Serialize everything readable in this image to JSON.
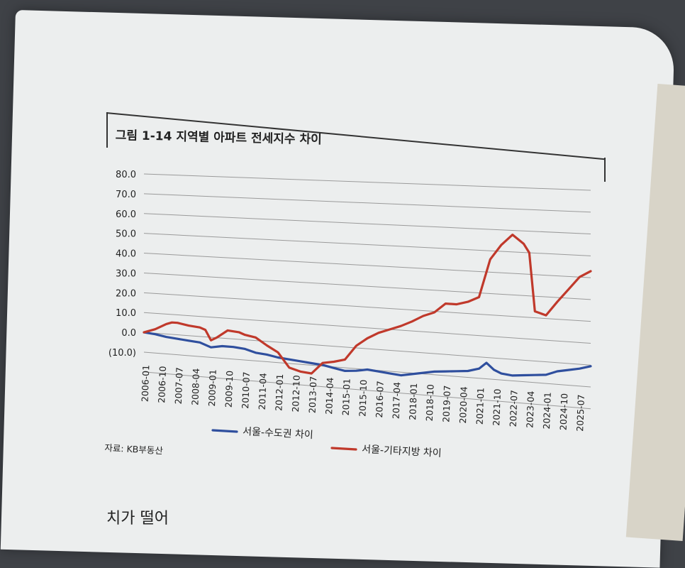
{
  "figure_title": "그림 1-14 지역별 아파트 전세지수 차이",
  "source": "자료: KB부동산",
  "bottom_text": "치가 떨어",
  "chart_data": {
    "type": "line",
    "title": "그림 1-14 지역별 아파트 전세지수 차이",
    "xlabel": "",
    "ylabel": "",
    "ylim": [
      -10,
      80
    ],
    "yticks": [
      80,
      70,
      60,
      50,
      40,
      30,
      20,
      10,
      0,
      -10
    ],
    "ytick_labels": [
      "80.0",
      "70.0",
      "60.0",
      "50.0",
      "40.0",
      "30.0",
      "20.0",
      "10.0",
      "0.0",
      "(10.0)"
    ],
    "xlim": [
      "2006-01",
      "2026-01"
    ],
    "xtick_labels": [
      "2006-01",
      "2006-10",
      "2007-07",
      "2008-04",
      "2009-01",
      "2009-10",
      "2010-07",
      "2011-04",
      "2012-01",
      "2012-10",
      "2013-07",
      "2014-04",
      "2015-01",
      "2015-10",
      "2016-07",
      "2017-04",
      "2018-01",
      "2018-10",
      "2019-07",
      "2020-04",
      "2021-01",
      "2021-10",
      "2022-07",
      "2023-04",
      "2024-01",
      "2024-10",
      "2025-07"
    ],
    "grid": true,
    "legend_position": "bottom",
    "series": [
      {
        "name": "서울-수도권 차이",
        "color": "#2f4f9e",
        "points": [
          [
            "2006-01",
            0
          ],
          [
            "2006-07",
            -0.5
          ],
          [
            "2007-01",
            -1.5
          ],
          [
            "2007-07",
            -2
          ],
          [
            "2008-01",
            -2.5
          ],
          [
            "2008-07",
            -3
          ],
          [
            "2009-01",
            -5
          ],
          [
            "2009-07",
            -4
          ],
          [
            "2010-01",
            -4
          ],
          [
            "2010-07",
            -4.5
          ],
          [
            "2011-01",
            -6
          ],
          [
            "2011-07",
            -6.5
          ],
          [
            "2012-01",
            -7.5
          ],
          [
            "2012-07",
            -8
          ],
          [
            "2013-01",
            -8.5
          ],
          [
            "2013-07",
            -9
          ],
          [
            "2014-01",
            -9.5
          ],
          [
            "2014-07",
            -10.5
          ],
          [
            "2015-01",
            -11.5
          ],
          [
            "2015-07",
            -11
          ],
          [
            "2016-01",
            -10
          ],
          [
            "2016-07",
            -10.5
          ],
          [
            "2017-01",
            -11
          ],
          [
            "2017-07",
            -11.5
          ],
          [
            "2018-01",
            -10.5
          ],
          [
            "2018-07",
            -9.5
          ],
          [
            "2019-01",
            -8.5
          ],
          [
            "2019-07",
            -8
          ],
          [
            "2020-01",
            -7.5
          ],
          [
            "2020-07",
            -7
          ],
          [
            "2021-01",
            -5.5
          ],
          [
            "2021-05",
            -2.5
          ],
          [
            "2021-09",
            -5.5
          ],
          [
            "2022-01",
            -7
          ],
          [
            "2022-07",
            -7.5
          ],
          [
            "2023-01",
            -7
          ],
          [
            "2023-07",
            -6.5
          ],
          [
            "2024-01",
            -6
          ],
          [
            "2024-07",
            -4
          ],
          [
            "2025-01",
            -3
          ],
          [
            "2025-07",
            -2
          ],
          [
            "2026-01",
            -0.5
          ]
        ]
      },
      {
        "name": "서울-기타지방 차이",
        "color": "#c0392b",
        "points": [
          [
            "2006-01",
            0
          ],
          [
            "2006-07",
            2
          ],
          [
            "2007-01",
            5
          ],
          [
            "2007-04",
            6
          ],
          [
            "2007-07",
            6
          ],
          [
            "2008-01",
            5
          ],
          [
            "2008-07",
            4.5
          ],
          [
            "2008-10",
            3.5
          ],
          [
            "2009-01",
            -1.5
          ],
          [
            "2009-04",
            0
          ],
          [
            "2009-10",
            4
          ],
          [
            "2010-04",
            3.5
          ],
          [
            "2010-07",
            2.5
          ],
          [
            "2011-01",
            1.5
          ],
          [
            "2011-07",
            -2
          ],
          [
            "2012-01",
            -5
          ],
          [
            "2012-07",
            -12
          ],
          [
            "2013-01",
            -13.5
          ],
          [
            "2013-07",
            -14
          ],
          [
            "2014-01",
            -8.5
          ],
          [
            "2014-07",
            -7.5
          ],
          [
            "2015-01",
            -6
          ],
          [
            "2015-07",
            1
          ],
          [
            "2016-01",
            5
          ],
          [
            "2016-07",
            8
          ],
          [
            "2017-01",
            10
          ],
          [
            "2017-07",
            12
          ],
          [
            "2018-01",
            14.5
          ],
          [
            "2018-07",
            17.5
          ],
          [
            "2019-01",
            19.5
          ],
          [
            "2019-07",
            24
          ],
          [
            "2020-01",
            24
          ],
          [
            "2020-07",
            25.5
          ],
          [
            "2021-01",
            28
          ],
          [
            "2021-07",
            46
          ],
          [
            "2022-01",
            53
          ],
          [
            "2022-07",
            58
          ],
          [
            "2023-01",
            54
          ],
          [
            "2023-04",
            50
          ],
          [
            "2023-07",
            23
          ],
          [
            "2024-01",
            21.5
          ],
          [
            "2024-07",
            28
          ],
          [
            "2025-01",
            34
          ],
          [
            "2025-07",
            40
          ],
          [
            "2026-01",
            43
          ]
        ]
      }
    ]
  }
}
